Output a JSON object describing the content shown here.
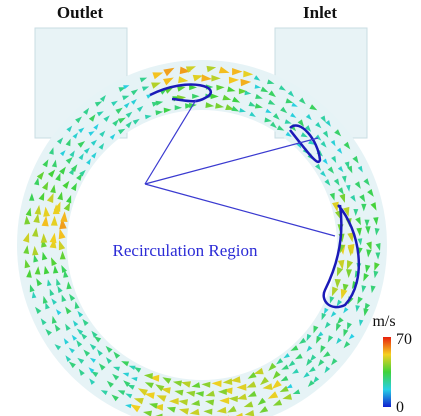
{
  "labels": {
    "outlet": "Outlet",
    "inlet": "Inlet"
  },
  "annotation": "Recirculation Region",
  "colorbar": {
    "unit": "m/s",
    "max": "70",
    "min": "0"
  }
}
